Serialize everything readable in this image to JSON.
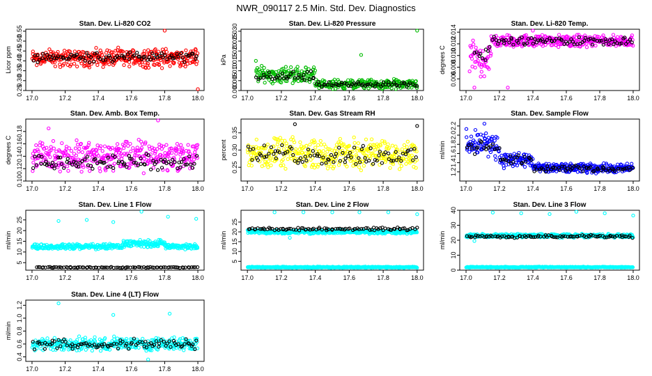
{
  "page": {
    "title": "NWR_090117  2.5 Min. Std. Dev. Diagnostics"
  },
  "chart_data": [
    {
      "type": "scatter",
      "title": "Stan. Dev. Li-820 CO2",
      "ylabel": "Licor ppm",
      "xlim": [
        17.0,
        18.0
      ],
      "ylim": [
        0.25,
        0.56
      ],
      "xticks": [
        "17.0",
        "17.2",
        "17.4",
        "17.6",
        "17.8",
        "18.0"
      ],
      "yticks": [
        "0.25",
        "0.30",
        "0.35",
        "0.40",
        "0.45",
        "0.50",
        "0.55"
      ],
      "series": [
        {
          "color": "#ff0000",
          "segments": [
            {
              "x0": 17.0,
              "x1": 18.0,
              "base": 0.415,
              "spread": 0.055
            }
          ],
          "outliers": [
            [
              18.0,
              0.25
            ],
            [
              17.8,
              0.56
            ]
          ]
        },
        {
          "color": "#000000",
          "segments": [
            {
              "x0": 17.0,
              "x1": 18.0,
              "base": 0.42,
              "spread": 0.03
            }
          ],
          "outliers": []
        }
      ]
    },
    {
      "type": "scatter",
      "title": "Stan. Dev. Li-820 Pressure",
      "ylabel": "kPa",
      "xlim": [
        17.0,
        18.0
      ],
      "ylim": [
        0.0,
        0.031
      ],
      "xticks": [
        "17.0",
        "17.2",
        "17.4",
        "17.6",
        "17.8",
        "18.0"
      ],
      "yticks": [
        "0.000",
        "0.005",
        "0.010",
        "0.015",
        "0.020",
        "0.025",
        "0.030"
      ],
      "series": [
        {
          "color": "#00bb00",
          "segments": [
            {
              "x0": 17.05,
              "x1": 17.4,
              "base": 0.008,
              "spread": 0.005
            },
            {
              "x0": 17.4,
              "x1": 18.0,
              "base": 0.003,
              "spread": 0.003
            }
          ],
          "outliers": [
            [
              17.67,
              0.018
            ],
            [
              18.0,
              0.0305
            ],
            [
              17.05,
              0.015
            ]
          ]
        },
        {
          "color": "#000000",
          "segments": [
            {
              "x0": 17.05,
              "x1": 17.4,
              "base": 0.007,
              "spread": 0.003
            },
            {
              "x0": 17.4,
              "x1": 18.0,
              "base": 0.003,
              "spread": 0.0015
            }
          ],
          "outliers": []
        }
      ]
    },
    {
      "type": "scatter",
      "title": "Stan. Dev. Li-820 Temp.",
      "ylabel": "degrees C",
      "xlim": [
        17.0,
        18.0
      ],
      "ylim": [
        0.004,
        0.0145
      ],
      "xticks": [
        "17.0",
        "17.2",
        "17.4",
        "17.6",
        "17.8",
        "18.0"
      ],
      "yticks": [
        "0.006",
        "0.008",
        "0.010",
        "0.012",
        "0.014"
      ],
      "series": [
        {
          "color": "#ff00ff",
          "segments": [
            {
              "x0": 17.02,
              "x1": 17.15,
              "base": 0.0095,
              "spread": 0.0035
            },
            {
              "x0": 17.15,
              "x1": 18.0,
              "base": 0.0125,
              "spread": 0.0012
            }
          ],
          "outliers": [
            [
              17.25,
              0.0045
            ],
            [
              17.4,
              0.0143
            ],
            [
              17.05,
              0.0045
            ]
          ]
        },
        {
          "color": "#000000",
          "segments": [
            {
              "x0": 17.05,
              "x1": 17.15,
              "base": 0.011,
              "spread": 0.002
            },
            {
              "x0": 17.15,
              "x1": 18.0,
              "base": 0.0125,
              "spread": 0.0008
            }
          ],
          "outliers": []
        }
      ]
    },
    {
      "type": "scatter",
      "title": "Stan. Dev. Amb. Box Temp.",
      "ylabel": "degrees C",
      "xlim": [
        17.0,
        18.0
      ],
      "ylim": [
        0.1,
        0.2
      ],
      "xticks": [
        "17.0",
        "17.2",
        "17.4",
        "17.6",
        "17.8",
        "18.0"
      ],
      "yticks": [
        "0.10",
        "0.12",
        "0.14",
        "0.16",
        "0.18"
      ],
      "series": [
        {
          "color": "#ff00ff",
          "segments": [
            {
              "x0": 17.0,
              "x1": 18.0,
              "base": 0.14,
              "spread": 0.03
            }
          ],
          "outliers": [
            [
              17.76,
              0.2
            ],
            [
              17.1,
              0.185
            ]
          ]
        },
        {
          "color": "#000000",
          "segments": [
            {
              "x0": 17.0,
              "x1": 18.0,
              "base": 0.13,
              "spread": 0.015
            }
          ],
          "outliers": []
        }
      ]
    },
    {
      "type": "scatter",
      "title": "Stan. Dev. Gas Stream RH",
      "ylabel": "percent",
      "xlim": [
        17.0,
        18.0
      ],
      "ylim": [
        0.21,
        0.39
      ],
      "xticks": [
        "17.0",
        "17.2",
        "17.4",
        "17.6",
        "17.8",
        "18.0"
      ],
      "yticks": [
        "0.25",
        "0.30",
        "0.35"
      ],
      "series": [
        {
          "color": "#ffff00",
          "segments": [
            {
              "x0": 17.0,
              "x1": 18.0,
              "base": 0.29,
              "spread": 0.05
            }
          ],
          "outliers": []
        },
        {
          "color": "#000000",
          "segments": [
            {
              "x0": 17.0,
              "x1": 18.0,
              "base": 0.285,
              "spread": 0.035
            }
          ],
          "outliers": [
            [
              17.28,
              0.375
            ],
            [
              18.0,
              0.37
            ]
          ]
        }
      ]
    },
    {
      "type": "scatter",
      "title": "Stan. Dev. Sample Flow",
      "ylabel": "ml/min",
      "xlim": [
        17.0,
        18.0
      ],
      "ylim": [
        1.0,
        2.35
      ],
      "xticks": [
        "17.0",
        "17.2",
        "17.4",
        "17.6",
        "17.8",
        "18.0"
      ],
      "yticks": [
        "1.2",
        "1.4",
        "1.6",
        "1.8",
        "2.0",
        "2.2"
      ],
      "series": [
        {
          "color": "#0000ff",
          "segments": [
            {
              "x0": 17.0,
              "x1": 17.2,
              "base": 1.8,
              "spread": 0.35
            },
            {
              "x0": 17.2,
              "x1": 17.4,
              "base": 1.45,
              "spread": 0.2
            },
            {
              "x0": 17.4,
              "x1": 18.0,
              "base": 1.28,
              "spread": 0.12
            }
          ],
          "outliers": [
            [
              17.11,
              2.25
            ]
          ]
        },
        {
          "color": "#000000",
          "segments": [
            {
              "x0": 17.0,
              "x1": 17.2,
              "base": 1.75,
              "spread": 0.2
            },
            {
              "x0": 17.2,
              "x1": 17.4,
              "base": 1.45,
              "spread": 0.15
            },
            {
              "x0": 17.4,
              "x1": 18.0,
              "base": 1.27,
              "spread": 0.07
            }
          ],
          "outliers": []
        }
      ]
    },
    {
      "type": "scatter",
      "title": "Stan. Dev. Line 1 Flow",
      "ylabel": "ml/min",
      "xlim": [
        17.0,
        18.0
      ],
      "ylim": [
        1.5,
        29.5
      ],
      "xticks": [
        "17.0",
        "17.2",
        "17.4",
        "17.6",
        "17.8",
        "18.0"
      ],
      "yticks": [
        "5",
        "10",
        "15",
        "20",
        "25"
      ],
      "series": [
        {
          "color": "#00ffff",
          "segments": [
            {
              "x0": 17.0,
              "x1": 17.4,
              "base": 12.5,
              "spread": 1.5
            },
            {
              "x0": 17.4,
              "x1": 17.55,
              "base": 12.5,
              "spread": 1.5
            },
            {
              "x0": 17.55,
              "x1": 17.8,
              "base": 14.0,
              "spread": 2.0
            },
            {
              "x0": 17.8,
              "x1": 18.0,
              "base": 12.5,
              "spread": 1.5
            }
          ],
          "outliers": [
            [
              17.16,
              24.5
            ],
            [
              17.33,
              25.0
            ],
            [
              17.49,
              24.0
            ],
            [
              17.66,
              29.0
            ],
            [
              17.82,
              26.5
            ],
            [
              17.99,
              25.5
            ]
          ]
        },
        {
          "color": "#000000",
          "segments": [
            {
              "x0": 17.02,
              "x1": 18.0,
              "base": 2.8,
              "spread": 0.3
            }
          ],
          "outliers": []
        }
      ]
    },
    {
      "type": "scatter",
      "title": "Stan. Dev. Line 2 Flow",
      "ylabel": "ml/min",
      "xlim": [
        17.0,
        18.0
      ],
      "ylim": [
        0.5,
        31.0
      ],
      "xticks": [
        "17.0",
        "17.2",
        "17.4",
        "17.6",
        "17.8",
        "18.0"
      ],
      "yticks": [
        "5",
        "10",
        "15",
        "20",
        "25"
      ],
      "series": [
        {
          "color": "#00ffff",
          "segments": [
            {
              "x0": 17.0,
              "x1": 18.0,
              "base": 20.0,
              "spread": 1.2
            },
            {
              "x0": 17.0,
              "x1": 18.0,
              "base": 2.0,
              "spread": 0.4
            }
          ],
          "outliers": [
            [
              17.16,
              30.0
            ],
            [
              17.33,
              30.0
            ],
            [
              17.5,
              30.0
            ],
            [
              17.66,
              30.0
            ],
            [
              17.83,
              30.0
            ],
            [
              18.0,
              29.0
            ],
            [
              17.25,
              17.0
            ]
          ]
        },
        {
          "color": "#000000",
          "segments": [
            {
              "x0": 17.0,
              "x1": 18.0,
              "base": 21.5,
              "spread": 0.8
            }
          ],
          "outliers": []
        }
      ]
    },
    {
      "type": "scatter",
      "title": "Stan. Dev. Line 3 Flow",
      "ylabel": "ml/min",
      "xlim": [
        17.0,
        18.0
      ],
      "ylim": [
        0.0,
        40.0
      ],
      "xticks": [
        "17.0",
        "17.2",
        "17.4",
        "17.6",
        "17.8",
        "18.0"
      ],
      "yticks": [
        "0",
        "10",
        "20",
        "30",
        "40"
      ],
      "series": [
        {
          "color": "#00ffff",
          "segments": [
            {
              "x0": 17.0,
              "x1": 18.0,
              "base": 23.0,
              "spread": 1.5
            },
            {
              "x0": 17.0,
              "x1": 18.0,
              "base": 2.0,
              "spread": 0.4
            }
          ],
          "outliers": [
            [
              17.16,
              38.5
            ],
            [
              17.33,
              38.0
            ],
            [
              17.5,
              37.5
            ],
            [
              17.66,
              39.0
            ],
            [
              17.83,
              38.0
            ],
            [
              18.0,
              36.5
            ],
            [
              17.05,
              19.5
            ]
          ]
        },
        {
          "color": "#000000",
          "segments": [
            {
              "x0": 17.0,
              "x1": 18.0,
              "base": 22.5,
              "spread": 1.2
            }
          ],
          "outliers": []
        }
      ]
    },
    {
      "type": "scatter",
      "title": "Stan. Dev. Line 4 (LT) Flow",
      "ylabel": "ml/min",
      "xlim": [
        17.0,
        18.0
      ],
      "ylim": [
        0.33,
        1.28
      ],
      "xticks": [
        "17.0",
        "17.2",
        "17.4",
        "17.6",
        "17.8",
        "18.0"
      ],
      "yticks": [
        "0.4",
        "0.6",
        "0.8",
        "1.0",
        "1.2"
      ],
      "series": [
        {
          "color": "#00ffff",
          "segments": [
            {
              "x0": 17.0,
              "x1": 18.0,
              "base": 0.6,
              "spread": 0.12
            }
          ],
          "outliers": [
            [
              17.16,
              1.23
            ],
            [
              17.49,
              1.05
            ],
            [
              17.83,
              1.07
            ],
            [
              17.7,
              0.36
            ]
          ]
        },
        {
          "color": "#000000",
          "segments": [
            {
              "x0": 17.0,
              "x1": 18.0,
              "base": 0.6,
              "spread": 0.1
            }
          ],
          "outliers": []
        }
      ]
    }
  ]
}
